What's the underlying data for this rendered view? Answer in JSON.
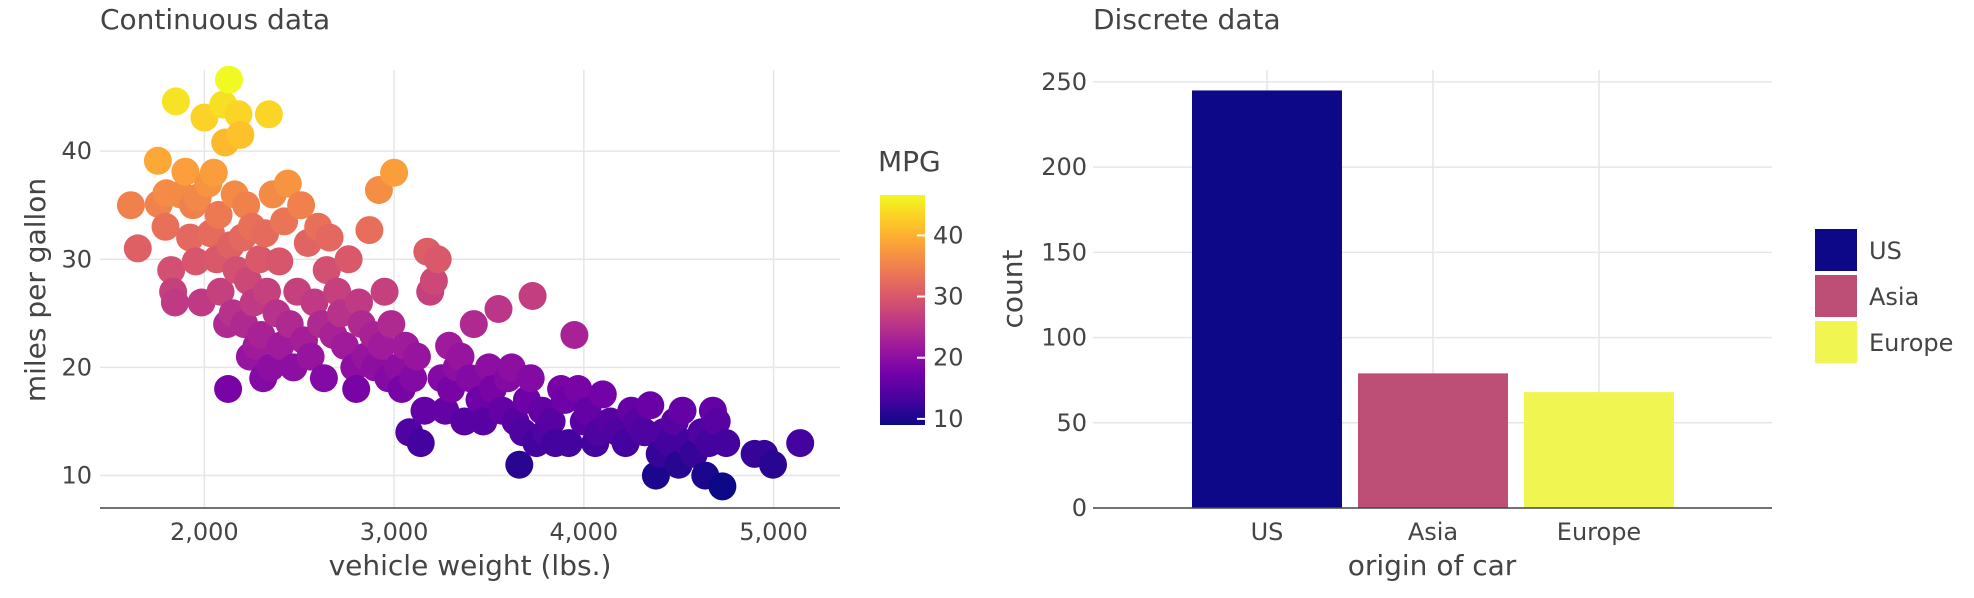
{
  "chart_data": [
    {
      "type": "scatter",
      "title": "Continuous data",
      "xlabel": "vehicle weight (lbs.)",
      "ylabel": "miles per gallon",
      "xlim": [
        1450,
        5350
      ],
      "ylim": [
        7,
        47.5
      ],
      "xticks": [
        2000,
        3000,
        4000,
        5000
      ],
      "xtick_labels": [
        "2,000",
        "3,000",
        "4,000",
        "5,000"
      ],
      "yticks": [
        10,
        20,
        30,
        40
      ],
      "ytick_labels": [
        "10",
        "20",
        "30",
        "40"
      ],
      "grid": true,
      "colorbar": {
        "title": "MPG",
        "range": [
          9,
          46.6
        ],
        "ticks": [
          10,
          20,
          30,
          40
        ],
        "tick_labels": [
          "10",
          "20",
          "30",
          "40"
        ],
        "colorscale": [
          "#0d0887",
          "#46039f",
          "#7201a8",
          "#9c179e",
          "#bd3786",
          "#d8576b",
          "#ed7953",
          "#fb9f3a",
          "#fdca26",
          "#f0f921"
        ]
      },
      "points": [
        [
          1613,
          35
        ],
        [
          1649,
          31
        ],
        [
          1755,
          39.1
        ],
        [
          1760,
          35.1
        ],
        [
          1795,
          33
        ],
        [
          1800,
          36.1
        ],
        [
          1825,
          29
        ],
        [
          1835,
          27
        ],
        [
          1845,
          26
        ],
        [
          1850,
          44.6
        ],
        [
          1875,
          36
        ],
        [
          1900,
          38.1
        ],
        [
          1925,
          32
        ],
        [
          1940,
          35
        ],
        [
          1955,
          29.8
        ],
        [
          1965,
          35.7
        ],
        [
          1985,
          26
        ],
        [
          2000,
          43.1
        ],
        [
          2020,
          37
        ],
        [
          2035,
          32.4
        ],
        [
          2050,
          38
        ],
        [
          2065,
          30
        ],
        [
          2075,
          34.1
        ],
        [
          2085,
          27
        ],
        [
          2100,
          44.3
        ],
        [
          2110,
          40.8
        ],
        [
          2120,
          24
        ],
        [
          2125,
          18
        ],
        [
          2130,
          46.6
        ],
        [
          2140,
          31.3
        ],
        [
          2150,
          25
        ],
        [
          2160,
          36
        ],
        [
          2170,
          29
        ],
        [
          2180,
          43.4
        ],
        [
          2190,
          41.5
        ],
        [
          2200,
          32
        ],
        [
          2210,
          24
        ],
        [
          2220,
          35
        ],
        [
          2230,
          28
        ],
        [
          2240,
          21
        ],
        [
          2250,
          33
        ],
        [
          2260,
          26
        ],
        [
          2275,
          22
        ],
        [
          2290,
          30
        ],
        [
          2300,
          23
        ],
        [
          2310,
          19
        ],
        [
          2320,
          32.4
        ],
        [
          2330,
          27
        ],
        [
          2340,
          43.4
        ],
        [
          2350,
          20
        ],
        [
          2360,
          36
        ],
        [
          2380,
          25
        ],
        [
          2395,
          29.8
        ],
        [
          2400,
          22
        ],
        [
          2420,
          33.5
        ],
        [
          2440,
          37
        ],
        [
          2450,
          24
        ],
        [
          2470,
          20
        ],
        [
          2490,
          27
        ],
        [
          2510,
          35
        ],
        [
          2525,
          22.5
        ],
        [
          2545,
          31.5
        ],
        [
          2560,
          21
        ],
        [
          2580,
          26
        ],
        [
          2600,
          33
        ],
        [
          2615,
          24
        ],
        [
          2630,
          19
        ],
        [
          2645,
          29
        ],
        [
          2660,
          32
        ],
        [
          2680,
          23
        ],
        [
          2700,
          27
        ],
        [
          2720,
          25
        ],
        [
          2740,
          22
        ],
        [
          2760,
          30
        ],
        [
          2790,
          20
        ],
        [
          2800,
          18
        ],
        [
          2815,
          26
        ],
        [
          2830,
          24
        ],
        [
          2850,
          21
        ],
        [
          2870,
          32.7
        ],
        [
          2890,
          23
        ],
        [
          2900,
          20
        ],
        [
          2920,
          36.4
        ],
        [
          2935,
          22
        ],
        [
          2950,
          27
        ],
        [
          2970,
          19
        ],
        [
          2985,
          24
        ],
        [
          3000,
          38
        ],
        [
          3020,
          20
        ],
        [
          3040,
          18
        ],
        [
          3060,
          22
        ],
        [
          3080,
          14
        ],
        [
          3100,
          19
        ],
        [
          3120,
          21
        ],
        [
          3140,
          13
        ],
        [
          3160,
          16
        ],
        [
          3175,
          30.7
        ],
        [
          3190,
          27
        ],
        [
          3210,
          28
        ],
        [
          3230,
          30
        ],
        [
          3250,
          19
        ],
        [
          3270,
          16
        ],
        [
          3290,
          22
        ],
        [
          3300,
          18
        ],
        [
          3330,
          20
        ],
        [
          3350,
          21
        ],
        [
          3370,
          15
        ],
        [
          3400,
          19
        ],
        [
          3420,
          24
        ],
        [
          3450,
          17
        ],
        [
          3470,
          15
        ],
        [
          3500,
          20
        ],
        [
          3520,
          18
        ],
        [
          3550,
          25.4
        ],
        [
          3570,
          16
        ],
        [
          3600,
          19
        ],
        [
          3620,
          20
        ],
        [
          3640,
          15
        ],
        [
          3660,
          11
        ],
        [
          3680,
          14
        ],
        [
          3700,
          17
        ],
        [
          3720,
          19
        ],
        [
          3730,
          26.6
        ],
        [
          3750,
          13
        ],
        [
          3780,
          16
        ],
        [
          3800,
          14
        ],
        [
          3830,
          15
        ],
        [
          3850,
          13
        ],
        [
          3880,
          18
        ],
        [
          3900,
          17
        ],
        [
          3920,
          13
        ],
        [
          3950,
          23
        ],
        [
          3970,
          18
        ],
        [
          4000,
          15
        ],
        [
          4020,
          16
        ],
        [
          4060,
          13
        ],
        [
          4080,
          14
        ],
        [
          4100,
          17.5
        ],
        [
          4140,
          15
        ],
        [
          4180,
          14
        ],
        [
          4220,
          13
        ],
        [
          4250,
          16
        ],
        [
          4280,
          15
        ],
        [
          4320,
          14
        ],
        [
          4350,
          16.5
        ],
        [
          4380,
          10
        ],
        [
          4400,
          12
        ],
        [
          4420,
          14
        ],
        [
          4450,
          13
        ],
        [
          4480,
          15
        ],
        [
          4500,
          11
        ],
        [
          4520,
          16
        ],
        [
          4550,
          13
        ],
        [
          4580,
          12
        ],
        [
          4620,
          14
        ],
        [
          4640,
          10
        ],
        [
          4660,
          13
        ],
        [
          4680,
          16
        ],
        [
          4700,
          15
        ],
        [
          4730,
          9
        ],
        [
          4750,
          13
        ],
        [
          4900,
          12
        ],
        [
          4950,
          12
        ],
        [
          4997,
          11
        ],
        [
          5140,
          13
        ]
      ]
    },
    {
      "type": "bar",
      "title": "Discrete data",
      "xlabel": "origin of car",
      "ylabel": "count",
      "categories": [
        "US",
        "Asia",
        "Europe"
      ],
      "values": [
        245,
        79,
        68
      ],
      "colors": [
        "#0d0887",
        "#bd4e76",
        "#f0f552"
      ],
      "ylim": [
        0,
        257
      ],
      "yticks": [
        0,
        50,
        100,
        150,
        200,
        250
      ],
      "ytick_labels": [
        "0",
        "50",
        "100",
        "150",
        "200",
        "250"
      ],
      "grid": true,
      "legend": {
        "placement": "right",
        "items": [
          {
            "label": "US",
            "color": "#0d0887"
          },
          {
            "label": "Asia",
            "color": "#bd4e76"
          },
          {
            "label": "Europe",
            "color": "#f0f552"
          }
        ]
      }
    }
  ]
}
